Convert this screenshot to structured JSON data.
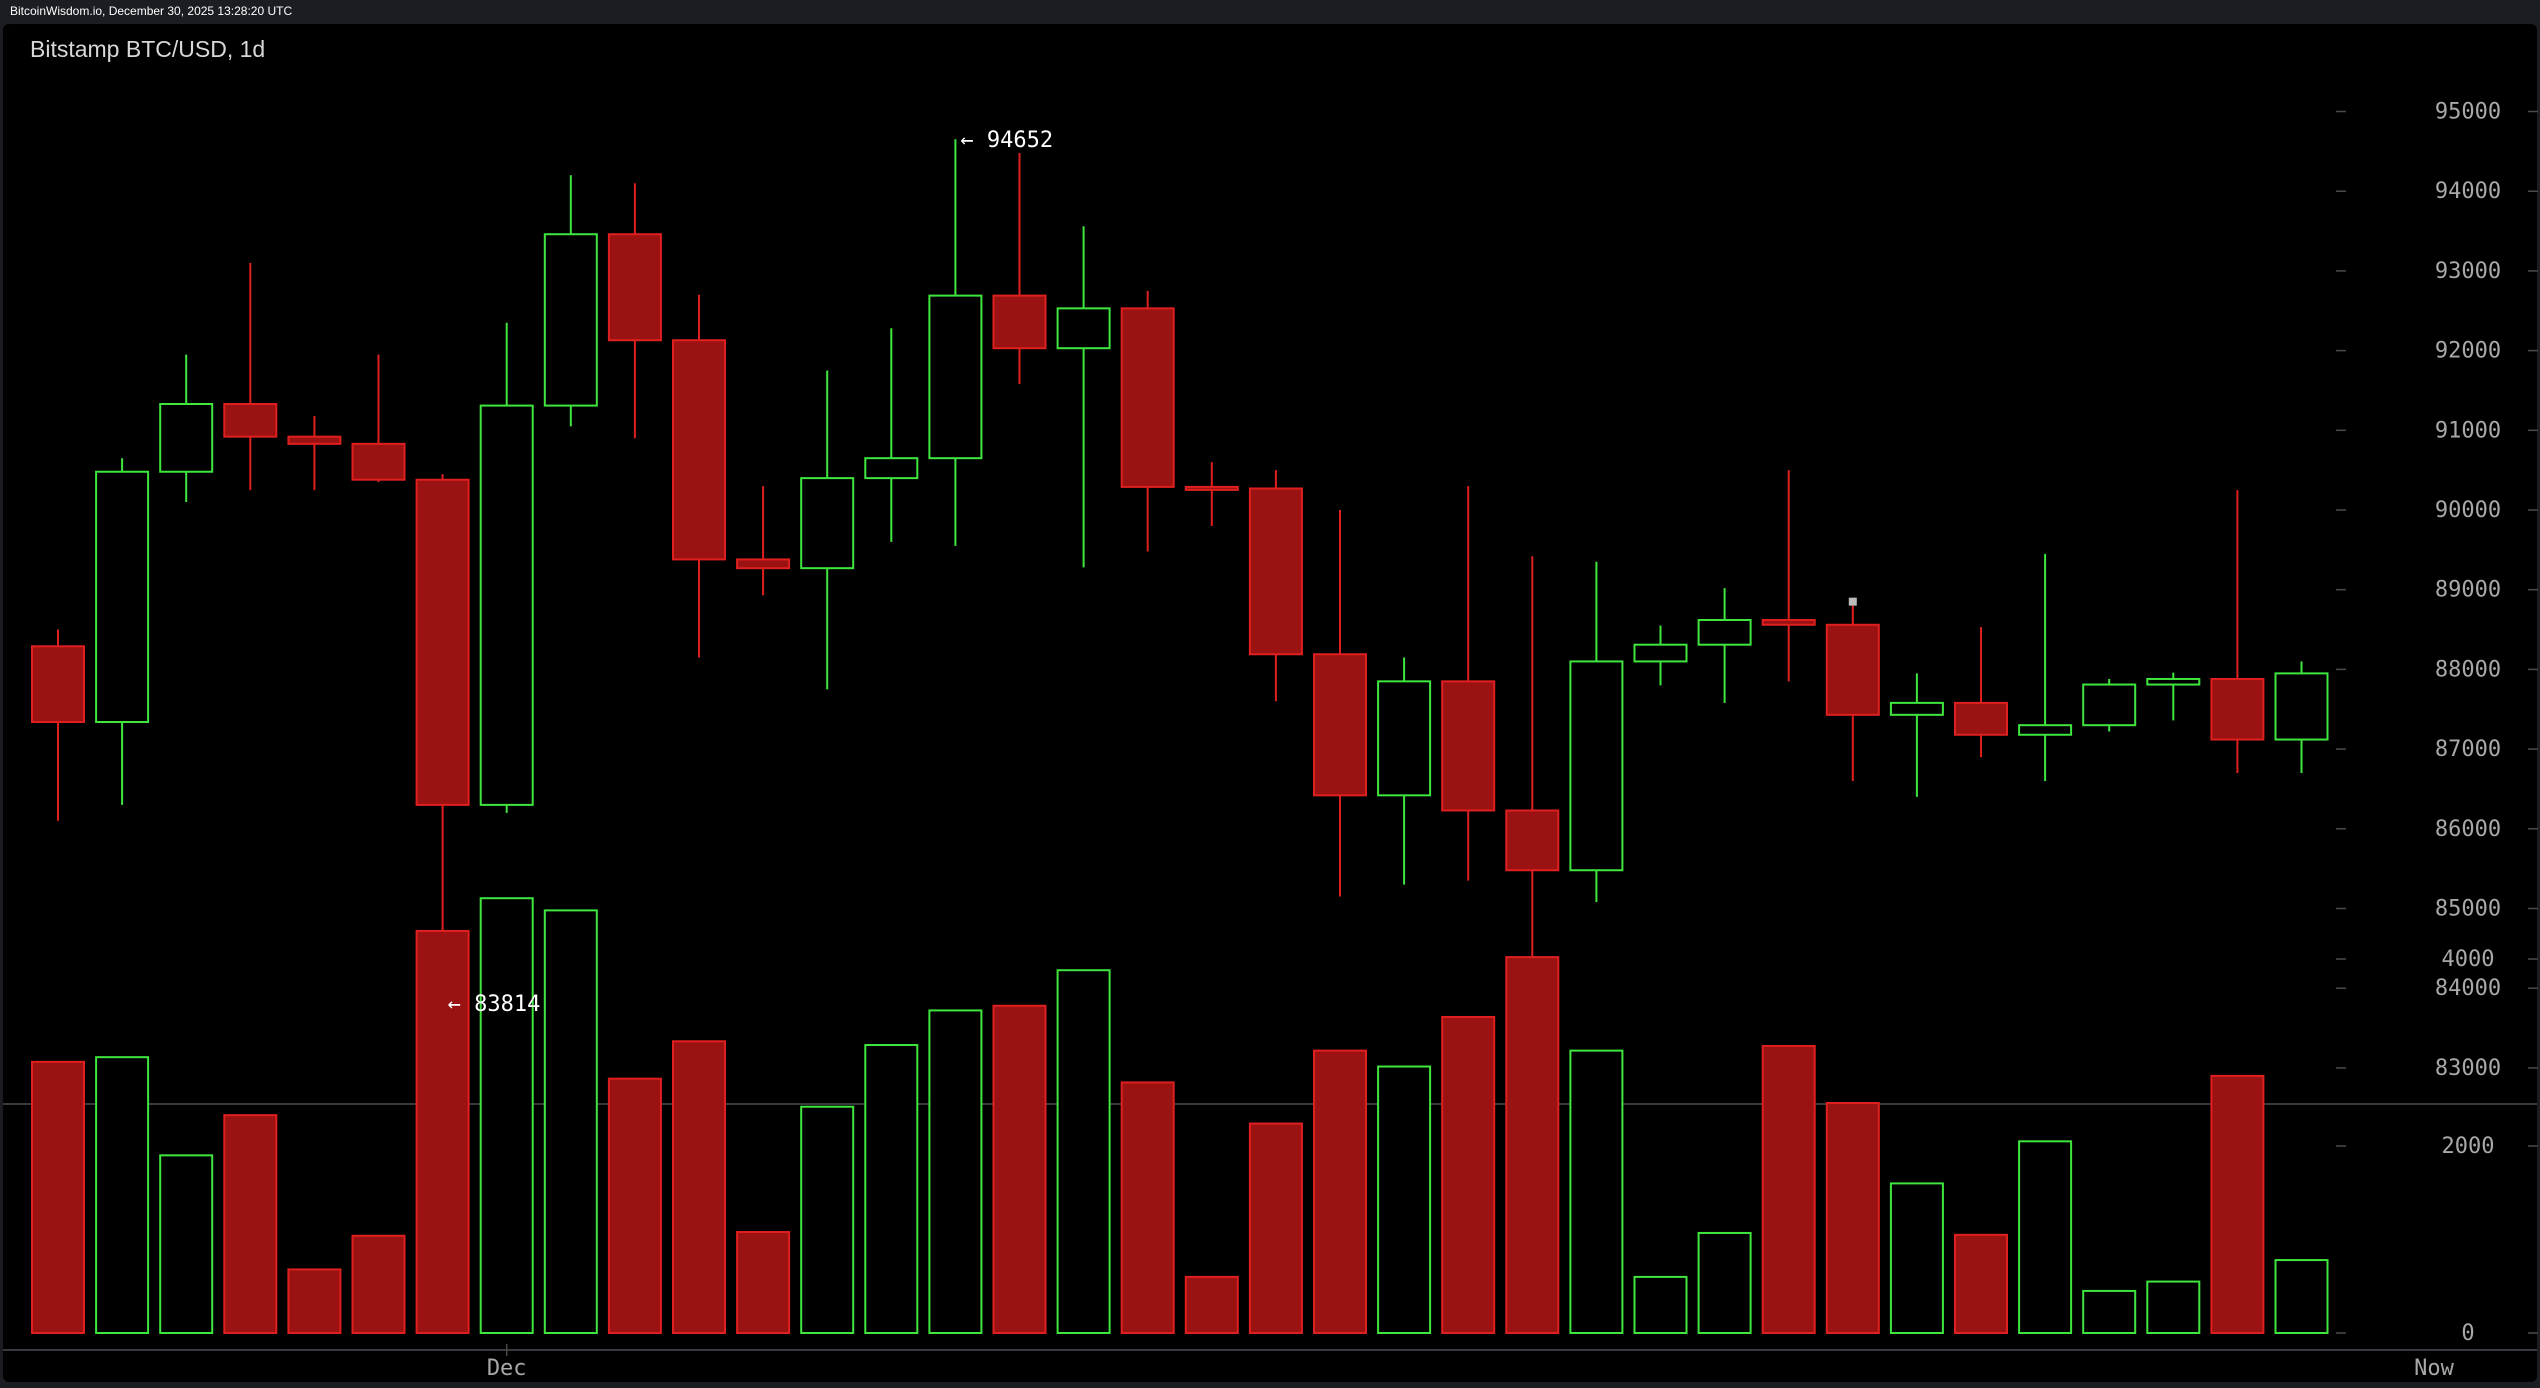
{
  "window": {
    "header_text": "BitcoinWisdom.io, December 30, 2025 13:28:20 UTC"
  },
  "chart_title": "Bitstamp BTC/USD, 1d",
  "colors": {
    "up": "#3ee63e",
    "down": "#e01f1f",
    "down_fill": "#9a1212",
    "axis_text": "#a8a8a8",
    "background": "#000000"
  },
  "chart_data": {
    "type": "candlestick",
    "exchange": "Bitstamp",
    "pair": "BTC/USD",
    "interval": "1d",
    "x_tick_labels": [
      {
        "label": "Dec",
        "candle_index": 7
      },
      {
        "label": "Now",
        "candle_index": 36
      }
    ],
    "price_axis": {
      "ticks": [
        95000,
        94000,
        93000,
        92000,
        91000,
        90000,
        89000,
        88000,
        87000,
        86000,
        85000,
        84000,
        83000
      ],
      "range": [
        82800,
        95500
      ]
    },
    "volume_axis": {
      "ticks": [
        4000,
        2000,
        0
      ],
      "range": [
        0,
        4700
      ]
    },
    "annotations": [
      {
        "text": "← 94652",
        "price": 94652,
        "candle_index": 14
      },
      {
        "text": "← 83814",
        "price": 83814,
        "candle_index": 6
      }
    ],
    "candles": [
      {
        "open": 88290,
        "high": 88500,
        "low": 86100,
        "close": 87340,
        "volume": 2900
      },
      {
        "open": 87340,
        "high": 90650,
        "low": 86300,
        "close": 90480,
        "volume": 2950
      },
      {
        "open": 90480,
        "high": 91950,
        "low": 90100,
        "close": 91330,
        "volume": 1900
      },
      {
        "open": 91330,
        "high": 93100,
        "low": 90250,
        "close": 90920,
        "volume": 2330
      },
      {
        "open": 90920,
        "high": 91180,
        "low": 90250,
        "close": 90830,
        "volume": 680
      },
      {
        "open": 90830,
        "high": 91950,
        "low": 90350,
        "close": 90380,
        "volume": 1040
      },
      {
        "open": 90380,
        "high": 90450,
        "low": 83814,
        "close": 86300,
        "volume": 4300
      },
      {
        "open": 86300,
        "high": 92350,
        "low": 86200,
        "close": 91310,
        "volume": 4650
      },
      {
        "open": 91310,
        "high": 94200,
        "low": 91050,
        "close": 93460,
        "volume": 4520
      },
      {
        "open": 93460,
        "high": 94100,
        "low": 90900,
        "close": 92130,
        "volume": 2720
      },
      {
        "open": 92130,
        "high": 92700,
        "low": 88150,
        "close": 89380,
        "volume": 3120
      },
      {
        "open": 89380,
        "high": 90300,
        "low": 88930,
        "close": 89270,
        "volume": 1080
      },
      {
        "open": 89270,
        "high": 91750,
        "low": 87750,
        "close": 90400,
        "volume": 2420
      },
      {
        "open": 90400,
        "high": 92280,
        "low": 89600,
        "close": 90650,
        "volume": 3080
      },
      {
        "open": 90650,
        "high": 94652,
        "low": 89550,
        "close": 92690,
        "volume": 3450
      },
      {
        "open": 92690,
        "high": 94480,
        "low": 91580,
        "close": 92030,
        "volume": 3500
      },
      {
        "open": 92030,
        "high": 93560,
        "low": 89280,
        "close": 92530,
        "volume": 3880
      },
      {
        "open": 92530,
        "high": 92750,
        "low": 89480,
        "close": 90290,
        "volume": 2680
      },
      {
        "open": 90290,
        "high": 90600,
        "low": 89800,
        "close": 90270,
        "volume": 600
      },
      {
        "open": 90270,
        "high": 90500,
        "low": 87600,
        "close": 88190,
        "volume": 2240
      },
      {
        "open": 88190,
        "high": 90000,
        "low": 85150,
        "close": 86420,
        "volume": 3020
      },
      {
        "open": 86420,
        "high": 88150,
        "low": 85300,
        "close": 87850,
        "volume": 2850
      },
      {
        "open": 87850,
        "high": 90300,
        "low": 85350,
        "close": 86230,
        "volume": 3380
      },
      {
        "open": 86230,
        "high": 89420,
        "low": 84400,
        "close": 85480,
        "volume": 4020
      },
      {
        "open": 85480,
        "high": 89350,
        "low": 85080,
        "close": 88100,
        "volume": 3020
      },
      {
        "open": 88100,
        "high": 88550,
        "low": 87800,
        "close": 88310,
        "volume": 600
      },
      {
        "open": 88310,
        "high": 89020,
        "low": 87580,
        "close": 88620,
        "volume": 1070
      },
      {
        "open": 88620,
        "high": 90500,
        "low": 87850,
        "close": 88560,
        "volume": 3070
      },
      {
        "open": 88560,
        "high": 88800,
        "low": 86600,
        "close": 87430,
        "volume": 2460
      },
      {
        "open": 87430,
        "high": 87950,
        "low": 86400,
        "close": 87580,
        "volume": 1600
      },
      {
        "open": 87580,
        "high": 88530,
        "low": 86900,
        "close": 87180,
        "volume": 1050
      },
      {
        "open": 87180,
        "high": 89450,
        "low": 86600,
        "close": 87300,
        "volume": 2050
      },
      {
        "open": 87300,
        "high": 87880,
        "low": 87220,
        "close": 87810,
        "volume": 450
      },
      {
        "open": 87810,
        "high": 87960,
        "low": 87360,
        "close": 87880,
        "volume": 550
      },
      {
        "open": 87880,
        "high": 90250,
        "low": 86700,
        "close": 87120,
        "volume": 2750
      },
      {
        "open": 87120,
        "high": 88100,
        "low": 86700,
        "close": 87950,
        "volume": 780
      }
    ]
  }
}
